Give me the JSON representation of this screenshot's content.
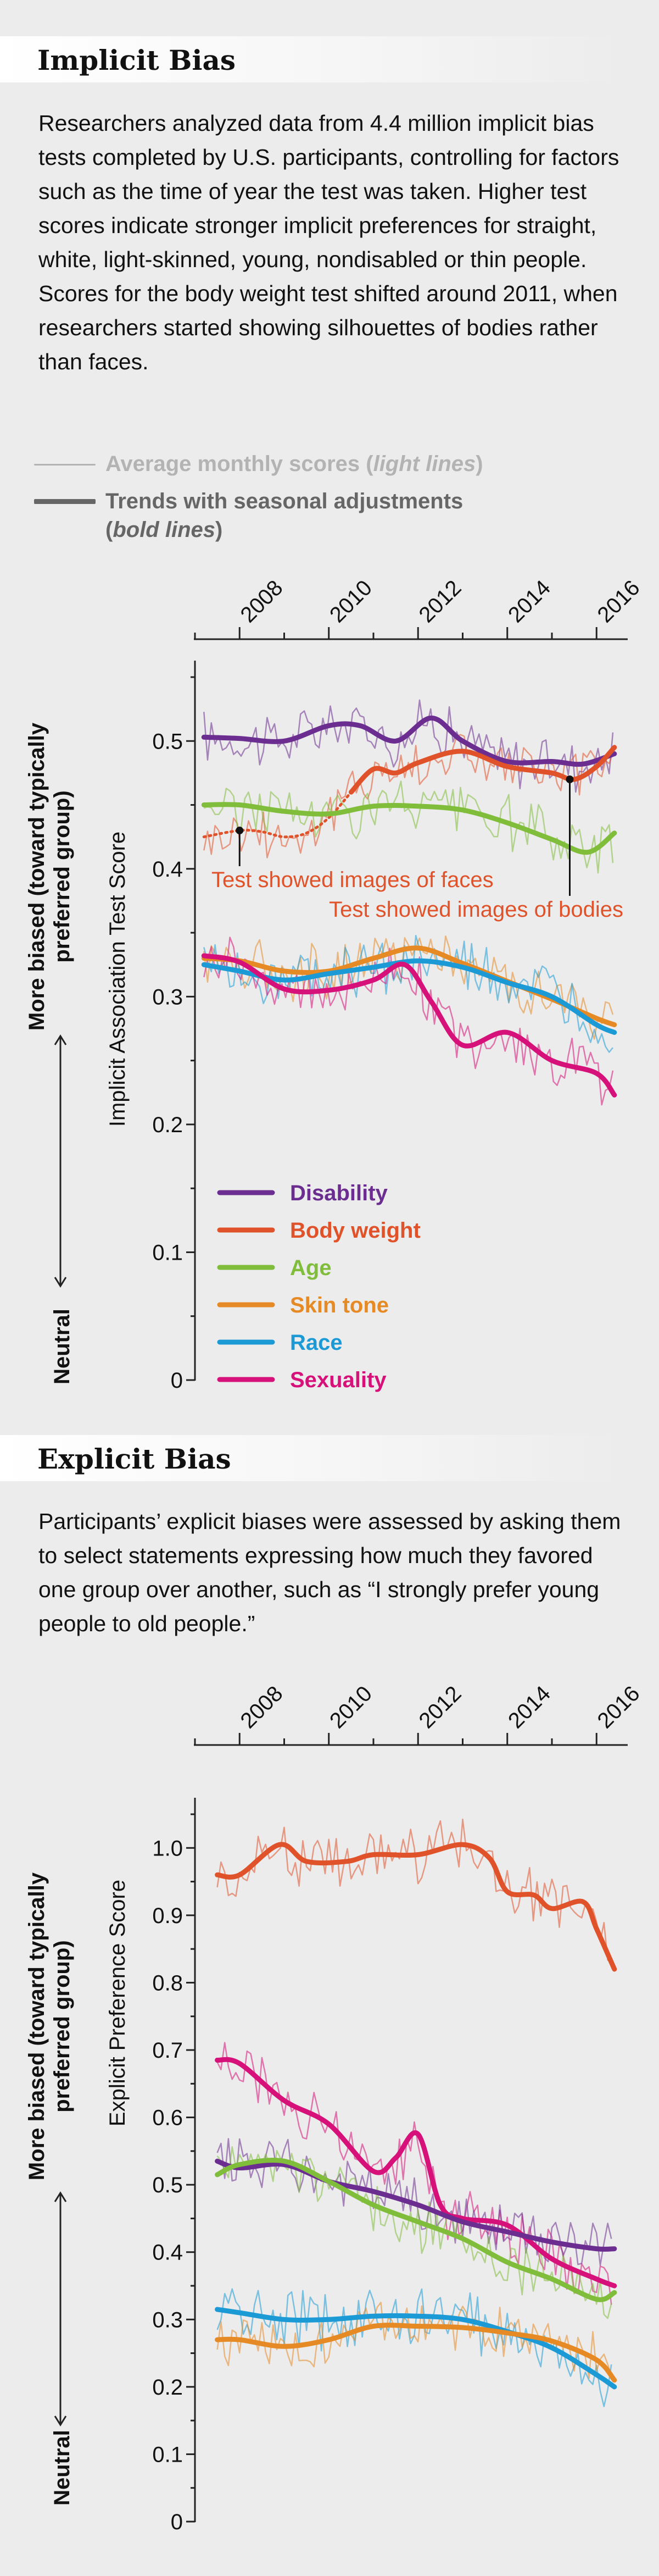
{
  "implicit": {
    "title": "Implicit Bias",
    "intro": "Researchers analyzed data from 4.4 million implicit bias tests completed by U.S. participants, controlling for factors such as the time of year the test was taken. Higher test scores indicate stronger implicit preferences for straight, white, light-skinned, young, nondisabled or thin people. Scores for the body weight test shifted around 2011, when researchers started showing silhouettes of bodies rather than faces.",
    "legend_light": {
      "prefix": "Average monthly scores (",
      "emph": "light lines",
      "suffix": ")"
    },
    "legend_bold": {
      "line1": "Trends with seasonal adjustments",
      "line2_prefix": "(",
      "line2_emph": "bold lines",
      "line2_suffix": ")"
    }
  },
  "explicit": {
    "title": "Explicit Bias",
    "intro": "Participants’ explicit biases were assessed by asking them to select statements expressing how much they favored one group over another, such as “I strongly prefer young people to old people.”"
  },
  "colors": {
    "disability": "#6b2d8f",
    "body_weight": "#e0522a",
    "age": "#7fbd3a",
    "skin_tone": "#e58a24",
    "race": "#1c9ad6",
    "sexuality": "#d6127a",
    "axis": "#222222",
    "light_legend": "#b3b3b3",
    "bold_legend": "#666666"
  },
  "chart_data": [
    {
      "type": "line",
      "title": "Implicit Bias",
      "ylabel": "Implicit Association Test Score",
      "side_label_top": "More biased (toward typically",
      "side_label_top2": "preferred group)",
      "side_label_bottom": "Neutral",
      "x_ticks": [
        "2008",
        "2010",
        "2012",
        "2014",
        "2016"
      ],
      "xlim": [
        2007,
        2016.6
      ],
      "y_ticks": [
        "0",
        "0.1",
        "0.2",
        "0.3",
        "0.4",
        "0.5"
      ],
      "ylim": [
        0,
        0.55
      ],
      "annotations": [
        {
          "text": "Test showed images of faces",
          "x": 2008.0,
          "y": 0.43,
          "color": "#e0522a"
        },
        {
          "text": "Test showed images of bodies",
          "x": 2015.4,
          "y": 0.47,
          "color": "#e0522a"
        }
      ],
      "series": [
        {
          "key": "disability",
          "name": "Disability",
          "x": [
            2007.2,
            2008,
            2009,
            2010,
            2010.7,
            2011.5,
            2012.3,
            2013,
            2014,
            2015,
            2015.7,
            2016.4
          ],
          "y": [
            0.503,
            0.502,
            0.5,
            0.512,
            0.512,
            0.5,
            0.518,
            0.5,
            0.484,
            0.484,
            0.482,
            0.49
          ]
        },
        {
          "key": "body_weight",
          "name": "Body weight",
          "x": [
            2007.2,
            2008,
            2008.5,
            2009,
            2009.5,
            2010,
            2010.5,
            2011,
            2011.5,
            2012,
            2013,
            2014,
            2015,
            2015.5,
            2016,
            2016.4
          ],
          "y": [
            0.425,
            0.43,
            0.429,
            0.425,
            0.428,
            0.44,
            0.46,
            0.478,
            0.475,
            0.483,
            0.492,
            0.48,
            0.475,
            0.47,
            0.48,
            0.495
          ]
        },
        {
          "key": "age",
          "name": "Age",
          "x": [
            2007.2,
            2008,
            2009,
            2010,
            2011,
            2012,
            2013,
            2014,
            2015,
            2015.8,
            2016.4
          ],
          "y": [
            0.45,
            0.45,
            0.445,
            0.443,
            0.449,
            0.449,
            0.446,
            0.436,
            0.423,
            0.413,
            0.428
          ]
        },
        {
          "key": "skin_tone",
          "name": "Skin tone",
          "x": [
            2007.2,
            2008,
            2009,
            2010,
            2011,
            2012,
            2013,
            2014,
            2015,
            2016,
            2016.4
          ],
          "y": [
            0.33,
            0.328,
            0.32,
            0.32,
            0.33,
            0.338,
            0.326,
            0.312,
            0.298,
            0.283,
            0.278
          ]
        },
        {
          "key": "race",
          "name": "Race",
          "x": [
            2007.2,
            2008,
            2009,
            2010,
            2011,
            2012,
            2013,
            2014,
            2015,
            2016,
            2016.4
          ],
          "y": [
            0.325,
            0.32,
            0.313,
            0.318,
            0.323,
            0.328,
            0.323,
            0.311,
            0.3,
            0.278,
            0.272
          ]
        },
        {
          "key": "sexuality",
          "name": "Sexuality",
          "x": [
            2007.2,
            2008,
            2009,
            2010,
            2011,
            2011.7,
            2012.3,
            2013,
            2014,
            2015,
            2016,
            2016.4
          ],
          "y": [
            0.332,
            0.327,
            0.306,
            0.305,
            0.313,
            0.325,
            0.296,
            0.262,
            0.272,
            0.25,
            0.24,
            0.223
          ]
        }
      ]
    },
    {
      "type": "line",
      "title": "Explicit Bias",
      "ylabel": "Explicit Preference Score",
      "side_label_top": "More biased (toward typically",
      "side_label_top2": "preferred group)",
      "side_label_bottom": "Neutral",
      "x_ticks": [
        "2008",
        "2010",
        "2012",
        "2014",
        "2016"
      ],
      "xlim": [
        2007,
        2016.6
      ],
      "y_ticks": [
        "0",
        "0.1",
        "0.2",
        "0.3",
        "0.4",
        "0.5",
        "0.6",
        "0.7",
        "0.8",
        "0.9",
        "1.0"
      ],
      "ylim": [
        0,
        1.05
      ],
      "series": [
        {
          "key": "body_weight",
          "name": "Body weight",
          "x": [
            2007.5,
            2008,
            2008.9,
            2009.5,
            2010.4,
            2011,
            2012,
            2013,
            2013.6,
            2014,
            2014.6,
            2015,
            2015.7,
            2016,
            2016.4
          ],
          "y": [
            0.96,
            0.96,
            1.005,
            0.98,
            0.98,
            0.99,
            0.99,
            1.005,
            0.985,
            0.935,
            0.93,
            0.91,
            0.92,
            0.88,
            0.82
          ]
        },
        {
          "key": "sexuality",
          "name": "Sexuality",
          "x": [
            2007.5,
            2008,
            2009,
            2010,
            2011,
            2011.5,
            2012,
            2012.5,
            2013,
            2014,
            2015,
            2016,
            2016.4
          ],
          "y": [
            0.685,
            0.68,
            0.625,
            0.59,
            0.52,
            0.54,
            0.575,
            0.47,
            0.45,
            0.44,
            0.39,
            0.36,
            0.35
          ]
        },
        {
          "key": "disability",
          "name": "Disability",
          "x": [
            2007.5,
            2008,
            2009,
            2010,
            2011,
            2012,
            2013,
            2014,
            2015,
            2016,
            2016.4
          ],
          "y": [
            0.535,
            0.525,
            0.53,
            0.505,
            0.49,
            0.47,
            0.445,
            0.43,
            0.415,
            0.405,
            0.405
          ]
        },
        {
          "key": "age",
          "name": "Age",
          "x": [
            2007.5,
            2008,
            2009,
            2010,
            2011,
            2012,
            2013,
            2014,
            2015,
            2016,
            2016.4
          ],
          "y": [
            0.515,
            0.53,
            0.535,
            0.505,
            0.47,
            0.445,
            0.42,
            0.385,
            0.36,
            0.33,
            0.34
          ]
        },
        {
          "key": "race",
          "name": "Race",
          "x": [
            2007.5,
            2008,
            2009,
            2010,
            2011,
            2012,
            2013,
            2014,
            2015,
            2016,
            2016.4
          ],
          "y": [
            0.315,
            0.31,
            0.3,
            0.3,
            0.305,
            0.305,
            0.3,
            0.282,
            0.258,
            0.218,
            0.2
          ]
        },
        {
          "key": "skin_tone",
          "name": "Skin tone",
          "x": [
            2007.5,
            2008,
            2009,
            2010,
            2011,
            2012,
            2013,
            2014,
            2015,
            2016,
            2016.4
          ],
          "y": [
            0.27,
            0.27,
            0.26,
            0.27,
            0.29,
            0.29,
            0.288,
            0.28,
            0.268,
            0.24,
            0.21
          ]
        }
      ]
    }
  ]
}
